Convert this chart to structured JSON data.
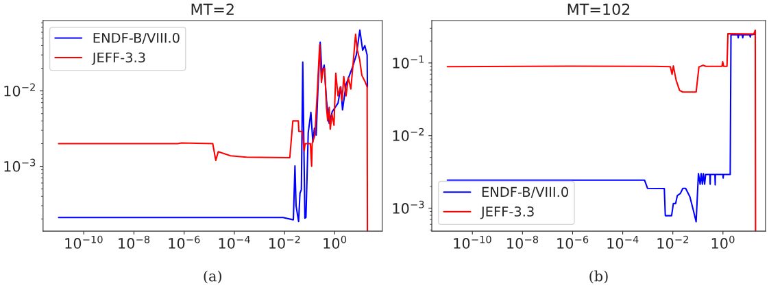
{
  "chart_data": [
    {
      "type": "line",
      "title": "MT=2",
      "log": "xy",
      "legend": "upper left",
      "xlim": [
        2.4e-12,
        77.6
      ],
      "ylim": [
        0.000138,
        0.0857
      ],
      "xticks": [
        {
          "value": 1e-10,
          "label": "10$^{−10}$"
        },
        {
          "value": 1e-08,
          "label": "10$^{−8}$"
        },
        {
          "value": 1e-06,
          "label": "10$^{−6}$"
        },
        {
          "value": 0.0001,
          "label": "10$^{−4}$"
        },
        {
          "value": 0.01,
          "label": "10$^{−2}$"
        },
        {
          "value": 1,
          "label": "10$^{0}$"
        }
      ],
      "yticks": [
        {
          "value": 0.001,
          "label": "10$^{−3}$"
        },
        {
          "value": 0.01,
          "label": "10$^{−2}$"
        }
      ],
      "annotations": [
        "(a)"
      ],
      "series": [
        {
          "name": "ENDF-B/VIII.0",
          "color": "#0000ff",
          "x": [
            1e-11,
            0.0087,
            0.0224,
            0.026,
            0.0288,
            0.0363,
            0.0412,
            0.0468,
            0.0531,
            0.0646,
            0.0713,
            0.0879,
            0.112,
            0.134,
            0.155,
            0.182,
            0.214,
            0.263,
            0.309,
            0.38,
            0.468,
            0.603,
            0.794,
            1.1,
            1.35,
            1.74,
            2.04,
            2.82,
            3.85,
            5.25,
            7.24,
            10.0,
            12.9,
            15.8,
            19.5,
            20.0
          ],
          "values": [
            0.000209,
            0.000209,
            0.000195,
            0.00101,
            0.0003,
            0.000185,
            0.00044,
            0.00049,
            0.0241,
            0.000205,
            0.00021,
            0.0028,
            0.0052,
            0.0021,
            0.0032,
            0.0026,
            0.0106,
            0.0442,
            0.0172,
            0.022,
            0.0075,
            0.0037,
            0.0053,
            null,
            0.0069,
            0.0113,
            0.0056,
            0.0122,
            0.0161,
            0.0212,
            0.03,
            0.064,
            0.0347,
            0.0398,
            0.03,
            0.0113
          ]
        },
        {
          "name": "JEFF-3.3",
          "color": "#ff0000",
          "x": [
            1e-11,
            5.62e-07,
            7.76e-07,
            1.38e-05,
            1.82e-05,
            2.29e-05,
            7.08e-05,
            0.000302,
            0.0162,
            0.0214,
            0.0355,
            0.0372,
            0.0513,
            0.0603,
            0.0661,
            0.107,
            0.12,
            0.126,
            0.162,
            0.2,
            0.251,
            0.295,
            0.347,
            0.398,
            0.468,
            0.525,
            0.603,
            0.661,
            0.776,
            0.933,
            1.1,
            1.35,
            1.66,
            1.95,
            2.29,
            2.82,
            3.47,
            4.37,
            5.37,
            6.76,
            7.94,
            9.77,
            12.0,
            16.6,
            19.5,
            20.0
          ],
          "values": [
            0.002,
            0.002,
            0.00204,
            0.002,
            0.0012,
            0.00156,
            0.00138,
            0.00132,
            0.0013,
            0.004,
            0.004,
            0.0029,
            0.0029,
            0.0016,
            0.002,
            0.002,
            0.001,
            0.002,
            0.0026,
            0.0092,
            0.0412,
            0.013,
            0.0198,
            0.0198,
            0.00605,
            0.004,
            0.00605,
            0.0031,
            0.0049,
            0.0035,
            0.0172,
            0.0086,
            0.0113,
            0.0075,
            0.0155,
            0.0086,
            0.015,
            0.0106,
            0.0228,
            0.0565,
            0.0347,
            0.0263,
            0.0161,
            0.013,
            0.0113,
            0.000138
          ]
        }
      ]
    },
    {
      "type": "line",
      "title": "MT=102",
      "log": "xy",
      "legend": "lower left",
      "xlim": [
        2.4e-12,
        50.1
      ],
      "ylim": [
        0.000484,
        0.383
      ],
      "xticks": [
        {
          "value": 1e-10,
          "label": "10$^{−10}$"
        },
        {
          "value": 1e-08,
          "label": "10$^{−8}$"
        },
        {
          "value": 1e-06,
          "label": "10$^{−6}$"
        },
        {
          "value": 0.0001,
          "label": "10$^{−4}$"
        },
        {
          "value": 0.01,
          "label": "10$^{−2}$"
        },
        {
          "value": 1,
          "label": "10$^{0}$"
        }
      ],
      "yticks": [
        {
          "value": 0.001,
          "label": "10$^{−3}$"
        },
        {
          "value": 0.01,
          "label": "10$^{−2}$"
        },
        {
          "value": 0.1,
          "label": "10$^{−1}$"
        }
      ],
      "annotations": [
        "(b)"
      ],
      "series": [
        {
          "name": "ENDF-B/VIII.0",
          "color": "#0000ff",
          "x": [
            1e-11,
            0.000741,
            0.000977,
            0.00457,
            0.00501,
            0.00891,
            0.0105,
            0.0129,
            0.0151,
            0.02,
            0.0251,
            0.0324,
            0.0479,
            0.0661,
            0.0851,
            0.105,
            0.123,
            0.135,
            0.151,
            0.166,
            0.186,
            0.204,
            0.302,
            0.309,
            0.316,
            0.479,
            0.49,
            0.501,
            1.0,
            1.02,
            1.05,
            1.95,
            2.09,
            3.89,
            4.07,
            4.27,
            5.89,
            6.17,
            6.46,
            11.7,
            12.3,
            12.9,
            19.1
          ],
          "values": [
            0.00244,
            0.00244,
            0.00188,
            0.00187,
            0.00079,
            0.00079,
            0.00116,
            0.00116,
            0.00149,
            0.0016,
            0.00188,
            0.00188,
            0.00144,
            0.00093,
            0.00065,
            0.003,
            0.00214,
            0.003,
            0.00214,
            0.003,
            0.00214,
            0.00292,
            0.00292,
            0.00214,
            0.00292,
            0.00292,
            0.0021,
            0.00292,
            0.00292,
            0.0026,
            0.00292,
            0.00292,
            0.244,
            0.244,
            0.222,
            0.244,
            0.244,
            0.222,
            0.244,
            0.244,
            0.228,
            0.244,
            0.248
          ]
        },
        {
          "name": "JEFF-3.3",
          "color": "#ff0000",
          "x": [
            1e-11,
            7.76e-07,
            0.00166,
            0.00794,
            0.00933,
            0.0105,
            0.0135,
            0.0186,
            0.0251,
            0.0851,
            0.11,
            0.162,
            0.209,
            0.912,
            0.977,
            1.07,
            1.45,
            1.58,
            17.0,
            19.5,
            20.0
          ],
          "values": [
            0.089,
            0.0903,
            0.0897,
            0.089,
            0.0697,
            0.091,
            0.058,
            0.0419,
            0.0398,
            0.0398,
            0.0878,
            0.093,
            0.0897,
            0.0897,
            0.1038,
            0.0897,
            0.0897,
            0.253,
            0.25,
            0.282,
            0.000484
          ]
        }
      ]
    }
  ]
}
